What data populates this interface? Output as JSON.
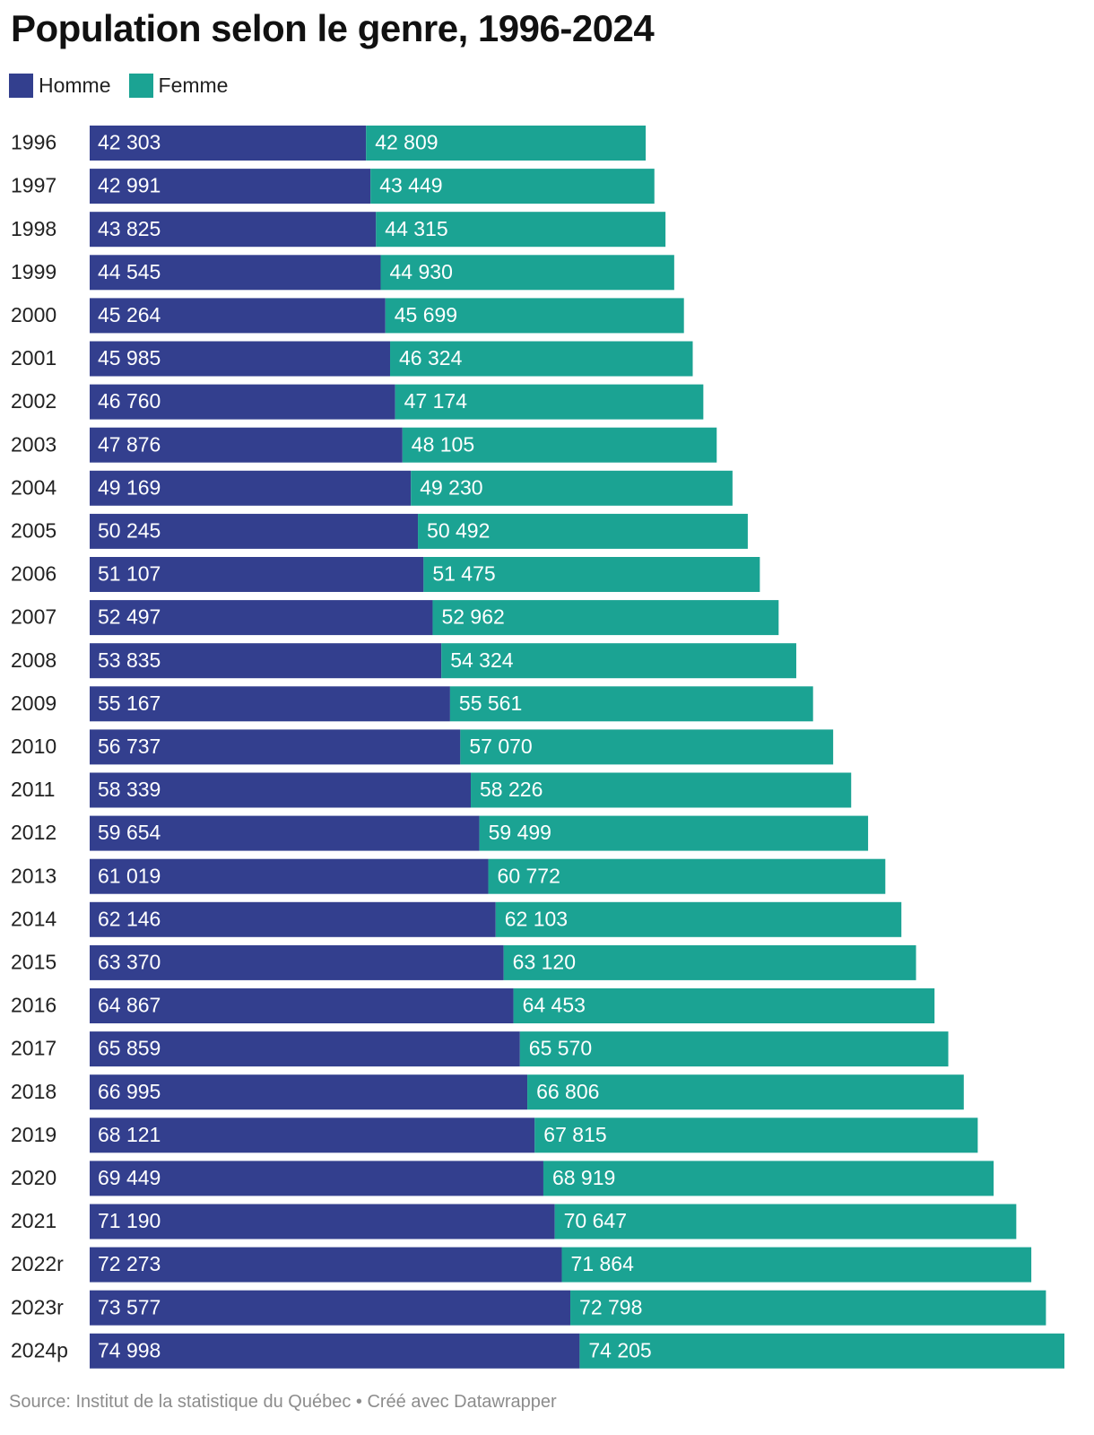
{
  "title": "Population selon le genre, 1996-2024",
  "legend": {
    "homme": "Homme",
    "femme": "Femme"
  },
  "colors": {
    "homme": "#333f8e",
    "femme": "#1ba393"
  },
  "footer": {
    "source": "Source: Institut de la statistique du Québec • Créé avec Datawrapper"
  },
  "chart_data": {
    "type": "bar",
    "orientation": "horizontal",
    "stacked": true,
    "grid": false,
    "legend_position": "top-left",
    "categories": [
      "1996",
      "1997",
      "1998",
      "1999",
      "2000",
      "2001",
      "2002",
      "2003",
      "2004",
      "2005",
      "2006",
      "2007",
      "2008",
      "2009",
      "2010",
      "2011",
      "2012",
      "2013",
      "2014",
      "2015",
      "2016",
      "2017",
      "2018",
      "2019",
      "2020",
      "2021",
      "2022r",
      "2023r",
      "2024p"
    ],
    "series": [
      {
        "name": "Homme",
        "values": [
          42303,
          42991,
          43825,
          44545,
          45264,
          45985,
          46760,
          47876,
          49169,
          50245,
          51107,
          52497,
          53835,
          55167,
          56737,
          58339,
          59654,
          61019,
          62146,
          63370,
          64867,
          65859,
          66995,
          68121,
          69449,
          71190,
          72273,
          73577,
          74998
        ],
        "labels": [
          "42 303",
          "42 991",
          "43 825",
          "44 545",
          "45 264",
          "45 985",
          "46 760",
          "47 876",
          "49 169",
          "50 245",
          "51 107",
          "52 497",
          "53 835",
          "55 167",
          "56 737",
          "58 339",
          "59 654",
          "61 019",
          "62 146",
          "63 370",
          "64 867",
          "65 859",
          "66 995",
          "68 121",
          "69 449",
          "71 190",
          "72 273",
          "73 577",
          "74 998"
        ]
      },
      {
        "name": "Femme",
        "values": [
          42809,
          43449,
          44315,
          44930,
          45699,
          46324,
          47174,
          48105,
          49230,
          50492,
          51475,
          52962,
          54324,
          55561,
          57070,
          58226,
          59499,
          60772,
          62103,
          63120,
          64453,
          65570,
          66806,
          67815,
          68919,
          70647,
          71864,
          72798,
          74205
        ],
        "labels": [
          "42 809",
          "43 449",
          "44 315",
          "44 930",
          "45 699",
          "46 324",
          "47 174",
          "48 105",
          "49 230",
          "50 492",
          "51 475",
          "52 962",
          "54 324",
          "55 561",
          "57 070",
          "58 226",
          "59 499",
          "60 772",
          "62 103",
          "63 120",
          "64 453",
          "65 570",
          "66 806",
          "67 815",
          "68 919",
          "70 647",
          "71 864",
          "72 798",
          "74 205"
        ]
      }
    ]
  }
}
